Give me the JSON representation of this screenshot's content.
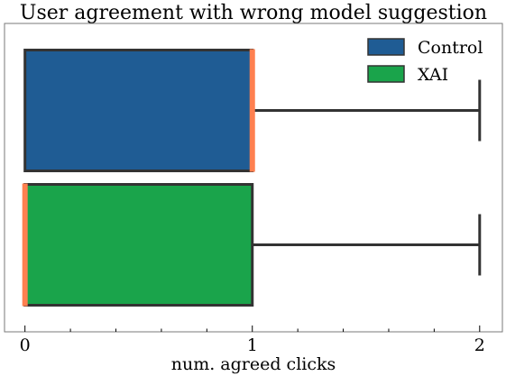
{
  "chart_data": {
    "type": "box",
    "orientation": "horizontal",
    "title": "User agreement with wrong model suggestion",
    "xlabel": "num. agreed clicks",
    "ylabel": "",
    "xlim": [
      -0.09,
      2.1
    ],
    "xticks": [
      0,
      1,
      2
    ],
    "xtick_labels": [
      "0",
      "1",
      "2"
    ],
    "grid": false,
    "legend_position": "top-right",
    "series": [
      {
        "name": "Control",
        "color": "#1f5c94",
        "q1": 0,
        "median": 1,
        "q3": 1,
        "whisker_low": 0,
        "whisker_high": 2
      },
      {
        "name": "XAI",
        "color": "#1aa44b",
        "q1": 0,
        "median": 0,
        "q3": 1,
        "whisker_low": 0,
        "whisker_high": 2
      }
    ],
    "median_color": "#ff8050",
    "edge_color": "#333333"
  }
}
